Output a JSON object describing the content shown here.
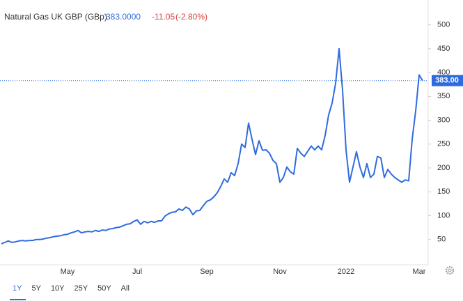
{
  "chart_data": {
    "type": "line",
    "title": "Natural Gas UK GBP (GBp)",
    "price": "383.0000",
    "change": "-11.05",
    "change_pct": "(-2.80%)",
    "last_tag": "383.00",
    "range_buttons": [
      "1Y",
      "5Y",
      "10Y",
      "25Y",
      "50Y",
      "All"
    ],
    "categories": [
      null,
      null,
      null,
      null,
      null,
      null,
      null,
      null,
      null,
      null,
      null,
      null,
      null,
      null,
      null,
      null,
      null,
      null,
      null,
      "May",
      null,
      null,
      null,
      null,
      null,
      null,
      null,
      null,
      null,
      null,
      null,
      null,
      null,
      null,
      null,
      null,
      null,
      null,
      null,
      "Jul",
      null,
      null,
      null,
      null,
      null,
      null,
      null,
      null,
      null,
      null,
      null,
      null,
      null,
      null,
      null,
      null,
      null,
      null,
      null,
      "Sep",
      null,
      null,
      null,
      null,
      null,
      null,
      null,
      null,
      null,
      null,
      null,
      null,
      null,
      null,
      null,
      null,
      null,
      null,
      null,
      null,
      "Nov",
      null,
      null,
      null,
      null,
      null,
      null,
      null,
      null,
      null,
      null,
      null,
      null,
      null,
      null,
      null,
      null,
      null,
      null,
      "2022",
      null,
      null,
      null,
      null,
      null,
      null,
      null,
      null,
      null,
      null,
      null,
      null,
      null,
      null,
      null,
      null,
      null,
      null,
      null,
      null,
      "Mar",
      null
    ],
    "series": [
      {
        "name": "Natural Gas UK GBP",
        "color": "#2f6be0",
        "values": [
          41,
          44,
          47,
          44,
          45,
          47,
          48,
          47,
          48,
          48,
          50,
          50,
          51,
          53,
          54,
          56,
          57,
          58,
          60,
          61,
          64,
          66,
          69,
          64,
          66,
          67,
          66,
          69,
          67,
          70,
          69,
          72,
          73,
          75,
          76,
          79,
          82,
          83,
          88,
          91,
          82,
          88,
          85,
          88,
          86,
          89,
          89,
          99,
          104,
          107,
          108,
          114,
          111,
          118,
          114,
          102,
          110,
          111,
          121,
          130,
          133,
          139,
          148,
          161,
          177,
          170,
          190,
          184,
          209,
          250,
          243,
          294,
          260,
          228,
          257,
          237,
          238,
          231,
          216,
          209,
          170,
          180,
          202,
          192,
          187,
          241,
          231,
          224,
          235,
          246,
          238,
          246,
          238,
          268,
          311,
          336,
          377,
          450,
          363,
          238,
          170,
          202,
          234,
          202,
          180,
          209,
          180,
          187,
          224,
          221,
          180,
          197,
          187,
          180,
          175,
          170,
          175,
          173,
          260,
          319,
          395,
          383
        ]
      }
    ],
    "ylim": [
      0,
      552
    ],
    "yticks": [
      50,
      100,
      150,
      200,
      250,
      300,
      350,
      400,
      450,
      500
    ],
    "grid": false
  }
}
